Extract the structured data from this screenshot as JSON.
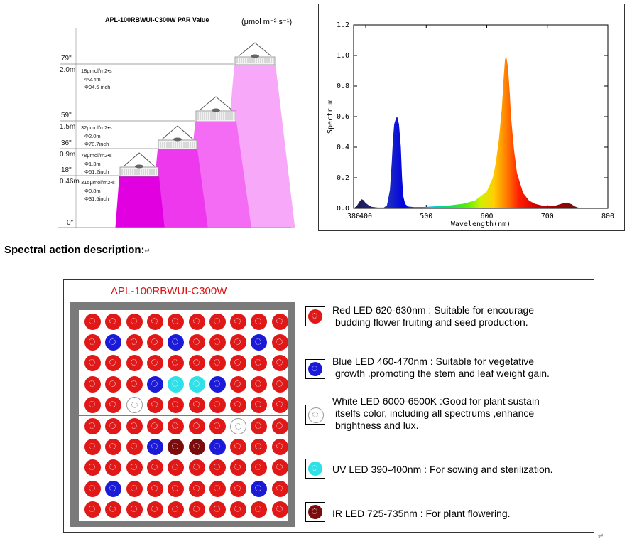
{
  "par_chart": {
    "model": "APL-100RBWUI-C300W",
    "title_suffix": "PAR Value",
    "unit_label": "(μmol m⁻² s⁻¹)",
    "heights": [
      {
        "inch": "79\"",
        "m": "2.0m",
        "par": "18μmol/m2•s",
        "dia_m": "Φ2.4m",
        "dia_in": "Φ94.5 inch"
      },
      {
        "inch": "59\"",
        "m": "1.5m",
        "par": "32μmol/m2•s",
        "dia_m": "Φ2.0m",
        "dia_in": "Φ78.7inch"
      },
      {
        "inch": "36\"",
        "m": "0.9m",
        "par": "78μmol/m2•s",
        "dia_m": "Φ1.3m",
        "dia_in": "Φ51.2inch"
      },
      {
        "inch": "18\"",
        "m": "0.46m",
        "par": "315μmol/m2•s",
        "dia_m": "Φ0.8m",
        "dia_in": "Φ31.5inch"
      }
    ],
    "zero_label": "0\"",
    "colors": {
      "fill_1": "#e000e0",
      "fill_2": "#ee38ee",
      "fill_3": "#f46cf4",
      "fill_4": "#f8a8f8"
    }
  },
  "chart_data": {
    "type": "area",
    "xlabel": "Wavelength(nm)",
    "ylabel": "Spectrum",
    "xlim": [
      380,
      800
    ],
    "ylim": [
      0,
      1.2
    ],
    "xticks": [
      380,
      400,
      500,
      600,
      700,
      800
    ],
    "yticks": [
      "0.0",
      "0.2",
      "0.4",
      "0.6",
      "0.8",
      "1.0",
      "1.2"
    ],
    "x": [
      380,
      385,
      390,
      393,
      396,
      400,
      405,
      410,
      420,
      430,
      435,
      440,
      443,
      445,
      447,
      450,
      452,
      455,
      458,
      460,
      462,
      465,
      470,
      480,
      500,
      520,
      540,
      560,
      580,
      600,
      610,
      615,
      620,
      625,
      628,
      630,
      632,
      635,
      638,
      640,
      645,
      650,
      660,
      670,
      680,
      690,
      700,
      710,
      715,
      720,
      725,
      730,
      733,
      736,
      740,
      745,
      750,
      760,
      780,
      800
    ],
    "values": [
      0.0,
      0.015,
      0.045,
      0.06,
      0.055,
      0.035,
      0.02,
      0.01,
      0.005,
      0.005,
      0.02,
      0.12,
      0.3,
      0.45,
      0.55,
      0.59,
      0.6,
      0.55,
      0.4,
      0.2,
      0.08,
      0.03,
      0.012,
      0.008,
      0.01,
      0.015,
      0.02,
      0.03,
      0.05,
      0.11,
      0.2,
      0.3,
      0.45,
      0.66,
      0.86,
      0.97,
      1.0,
      0.92,
      0.75,
      0.6,
      0.38,
      0.23,
      0.1,
      0.05,
      0.03,
      0.02,
      0.014,
      0.016,
      0.02,
      0.026,
      0.032,
      0.036,
      0.037,
      0.034,
      0.027,
      0.014,
      0.006,
      0.002,
      0.001,
      0.0
    ]
  },
  "heading": {
    "text": "Spectral action description:",
    "mark": "↵"
  },
  "led_panel": {
    "title": "APL-100RBWUI-C300W",
    "grid_rows": [
      "RRRRRRRRRR",
      "RBRRBRRRBR",
      "RRRRRRRRRR",
      "RRRBUUBRRR",
      "RRWRRRRRRR",
      "RRRRRRRWRR",
      "RRRBIIBRRR",
      "RRRRRRRRRR",
      "RBRRRRRRBR",
      "RRRRRRRRRR"
    ],
    "led_colors": {
      "R": "#e01818",
      "B": "#1a1ad8",
      "W": "#ffffff",
      "U": "#30e0e8",
      "I": "#7a0c0c"
    },
    "legend": [
      {
        "type": "R",
        "lines": [
          "Red LED 620-630nm  : Suitable for encourage",
          "budding flower fruiting and seed production."
        ]
      },
      {
        "type": "B",
        "lines": [
          "Blue LED 460-470nm   : Suitable for vegetative",
          "growth .promoting the stem and leaf weight gain."
        ]
      },
      {
        "type": "W",
        "lines": [
          "White LED 6000-6500K :Good for plant sustain",
          "itselfs color, including all spectrums ,enhance",
          "brightness and lux."
        ]
      },
      {
        "type": "U",
        "lines": [
          "UV LED  390-400nm : For sowing and sterilization."
        ]
      },
      {
        "type": "I",
        "lines": [
          "IR LED   725-735nm   : For plant flowering."
        ]
      }
    ],
    "trailing_mark": "↵"
  }
}
